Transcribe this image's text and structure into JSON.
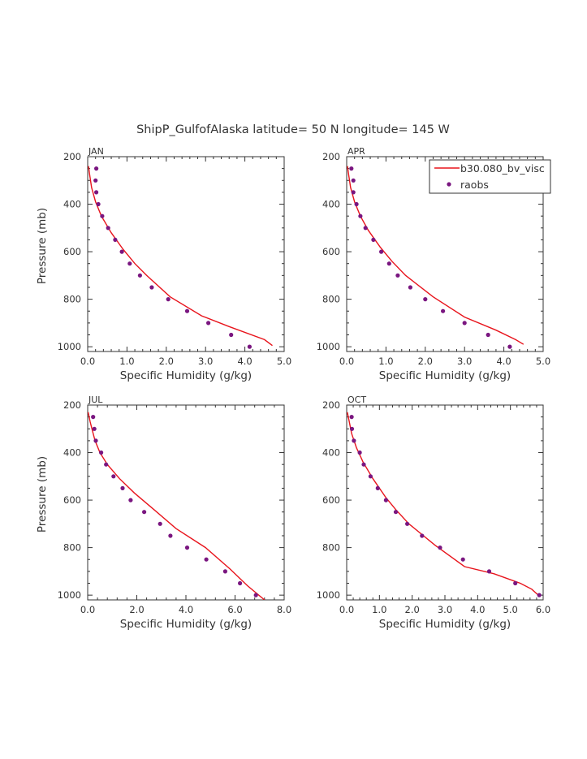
{
  "figure_title": "ShipP_GulfofAlaska  latitude= 50 N longitude= 145 W",
  "legend": {
    "model_label": "b30.080_bv_visc",
    "obs_label": "raobs",
    "model_color": "#e8141c",
    "obs_color": "#7a1680",
    "placement": "top-right of APR panel"
  },
  "chart_data": [
    {
      "type": "line",
      "panel": "JAN",
      "xlabel": "Specific Humidity (g/kg)",
      "ylabel": "Pressure (mb)",
      "xlim": [
        0,
        5
      ],
      "ylim": [
        1020,
        200
      ],
      "xticks": [
        "0.0",
        "1.0",
        "2.0",
        "3.0",
        "4.0",
        "5.0"
      ],
      "yticks": [
        "200",
        "400",
        "600",
        "800",
        "1000"
      ],
      "series": [
        {
          "name": "b30.080_bv_visc",
          "kind": "line",
          "x": [
            0.02,
            0.05,
            0.1,
            0.2,
            0.35,
            0.6,
            0.9,
            1.2,
            1.5,
            2.1,
            2.9,
            3.6,
            4.5,
            4.7
          ],
          "y": [
            240,
            275,
            330,
            390,
            450,
            520,
            590,
            650,
            700,
            790,
            870,
            915,
            970,
            995
          ]
        },
        {
          "name": "raobs",
          "kind": "scatter",
          "x": [
            0.22,
            0.2,
            0.22,
            0.27,
            0.37,
            0.52,
            0.7,
            0.87,
            1.07,
            1.33,
            1.63,
            2.05,
            2.53,
            3.07,
            3.65,
            4.12
          ],
          "y": [
            250,
            300,
            350,
            400,
            450,
            500,
            550,
            600,
            650,
            700,
            750,
            800,
            850,
            900,
            950,
            1000
          ]
        }
      ]
    },
    {
      "type": "line",
      "panel": "APR",
      "xlabel": "Specific Humidity (g/kg)",
      "ylabel": "",
      "xlim": [
        0,
        5
      ],
      "ylim": [
        1020,
        200
      ],
      "xticks": [
        "0.0",
        "1.0",
        "2.0",
        "3.0",
        "4.0",
        "5.0"
      ],
      "yticks": [
        "200",
        "400",
        "600",
        "800",
        "1000"
      ],
      "series": [
        {
          "name": "b30.080_bv_visc",
          "kind": "line",
          "x": [
            0.02,
            0.05,
            0.1,
            0.2,
            0.35,
            0.55,
            0.85,
            1.15,
            1.5,
            2.2,
            3.0,
            3.8,
            4.3,
            4.5
          ],
          "y": [
            240,
            275,
            330,
            390,
            450,
            510,
            580,
            640,
            700,
            790,
            875,
            930,
            970,
            990
          ]
        },
        {
          "name": "raobs",
          "kind": "scatter",
          "x": [
            0.12,
            0.17,
            0.17,
            0.25,
            0.35,
            0.48,
            0.68,
            0.88,
            1.08,
            1.3,
            1.62,
            2.0,
            2.45,
            3.0,
            3.6,
            4.15
          ],
          "y": [
            250,
            300,
            350,
            400,
            450,
            500,
            550,
            600,
            650,
            700,
            750,
            800,
            850,
            900,
            950,
            1000
          ]
        }
      ]
    },
    {
      "type": "line",
      "panel": "JUL",
      "xlabel": "Specific Humidity (g/kg)",
      "ylabel": "Pressure (mb)",
      "xlim": [
        0,
        8
      ],
      "ylim": [
        1020,
        200
      ],
      "xticks": [
        "0.0",
        "2.0",
        "4.0",
        "6.0",
        "8.0"
      ],
      "yticks": [
        "200",
        "400",
        "600",
        "800",
        "1000"
      ],
      "series": [
        {
          "name": "b30.080_bv_visc",
          "kind": "line",
          "x": [
            0.02,
            0.1,
            0.2,
            0.3,
            0.5,
            0.8,
            1.3,
            1.9,
            2.7,
            3.6,
            4.8,
            5.8,
            6.5,
            7.2
          ],
          "y": [
            230,
            270,
            310,
            350,
            400,
            450,
            510,
            570,
            640,
            720,
            800,
            890,
            960,
            1020
          ]
        },
        {
          "name": "raobs",
          "kind": "scatter",
          "x": [
            0.22,
            0.27,
            0.33,
            0.55,
            0.75,
            1.05,
            1.42,
            1.75,
            2.3,
            2.95,
            3.37,
            4.05,
            4.83,
            5.6,
            6.2,
            6.85
          ],
          "y": [
            250,
            300,
            350,
            400,
            450,
            500,
            550,
            600,
            650,
            700,
            750,
            800,
            850,
            900,
            950,
            1000
          ]
        }
      ]
    },
    {
      "type": "line",
      "panel": "OCT",
      "xlabel": "Specific Humidity (g/kg)",
      "ylabel": "",
      "xlim": [
        0,
        6
      ],
      "ylim": [
        1020,
        200
      ],
      "xticks": [
        "0.0",
        "1.0",
        "2.0",
        "3.0",
        "4.0",
        "5.0",
        "6.0"
      ],
      "yticks": [
        "200",
        "400",
        "600",
        "800",
        "1000"
      ],
      "series": [
        {
          "name": "b30.080_bv_visc",
          "kind": "line",
          "x": [
            0.02,
            0.08,
            0.15,
            0.3,
            0.5,
            0.8,
            1.2,
            1.5,
            1.9,
            2.7,
            3.6,
            4.5,
            5.3,
            5.65,
            5.85
          ],
          "y": [
            230,
            270,
            320,
            380,
            440,
            510,
            590,
            640,
            700,
            790,
            880,
            910,
            950,
            975,
            1000
          ]
        },
        {
          "name": "raobs",
          "kind": "scatter",
          "x": [
            0.15,
            0.16,
            0.22,
            0.4,
            0.52,
            0.73,
            0.95,
            1.2,
            1.5,
            1.85,
            2.3,
            2.85,
            3.55,
            4.35,
            5.15,
            5.88
          ],
          "y": [
            250,
            300,
            350,
            400,
            450,
            500,
            550,
            600,
            650,
            700,
            750,
            800,
            850,
            900,
            950,
            1000
          ]
        }
      ]
    }
  ]
}
